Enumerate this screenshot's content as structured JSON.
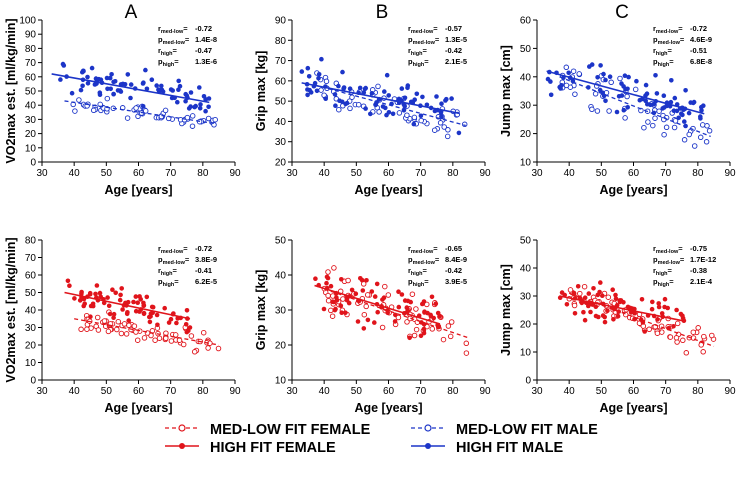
{
  "panel_letters": [
    "A",
    "B",
    "C"
  ],
  "colors": {
    "blue": "#1c35c8",
    "red": "#e0141b"
  },
  "legend": {
    "items": [
      {
        "label": "MED-LOW FIT FEMALE",
        "color": "#e0141b",
        "style": "open-dashed"
      },
      {
        "label": "HIGH FIT FEMALE",
        "color": "#e0141b",
        "style": "filled-solid"
      },
      {
        "label": "MED-LOW FIT MALE",
        "color": "#1c35c8",
        "style": "open-dashed"
      },
      {
        "label": "HIGH FIT MALE",
        "color": "#1c35c8",
        "style": "filled-solid"
      }
    ]
  },
  "chart_data": [
    {
      "id": "male-vo2",
      "type": "scatter",
      "color": "#1c35c8",
      "title": "",
      "xlabel": "Age [years]",
      "ylabel": "VO2max est. [ml/kg/min]",
      "xlim": [
        30,
        90
      ],
      "ylim": [
        0,
        100
      ],
      "xticks": [
        30,
        40,
        50,
        60,
        70,
        80,
        90
      ],
      "yticks": [
        0,
        10,
        20,
        30,
        40,
        50,
        60,
        70,
        80,
        90,
        100
      ],
      "stats": [
        {
          "name": "r",
          "sub": "med-low",
          "value": "-0.72"
        },
        {
          "name": "p",
          "sub": "med-low",
          "value": "1.4E-8"
        },
        {
          "name": "r",
          "sub": "high",
          "value": "-0.47"
        },
        {
          "name": "p",
          "sub": "high",
          "value": "1.3E-6"
        }
      ],
      "fits": [
        {
          "group": "high",
          "x": [
            33,
            82
          ],
          "y": [
            62,
            42
          ]
        },
        {
          "group": "med-low",
          "x": [
            37,
            84
          ],
          "y": [
            43,
            27
          ]
        }
      ],
      "seed": 11,
      "n_high": 80,
      "n_low": 60,
      "high_range": [
        33,
        82
      ],
      "low_range": [
        37,
        84
      ],
      "noise_high": 7,
      "noise_low": 4
    },
    {
      "id": "male-grip",
      "type": "scatter",
      "color": "#1c35c8",
      "title": "",
      "xlabel": "Age [years]",
      "ylabel": "Grip max [kg]",
      "xlim": [
        30,
        90
      ],
      "ylim": [
        20,
        90
      ],
      "xticks": [
        30,
        40,
        50,
        60,
        70,
        80,
        90
      ],
      "yticks": [
        20,
        30,
        40,
        50,
        60,
        70,
        80,
        90
      ],
      "stats": [
        {
          "name": "r",
          "sub": "med-low",
          "value": "-0.57"
        },
        {
          "name": "p",
          "sub": "med-low",
          "value": "1.3E-5"
        },
        {
          "name": "r",
          "sub": "high",
          "value": "-0.42"
        },
        {
          "name": "p",
          "sub": "high",
          "value": "2.1E-5"
        }
      ],
      "fits": [
        {
          "group": "high",
          "x": [
            33,
            82
          ],
          "y": [
            59,
            44
          ]
        },
        {
          "group": "med-low",
          "x": [
            37,
            84
          ],
          "y": [
            58,
            38
          ]
        }
      ],
      "seed": 23,
      "n_high": 80,
      "n_low": 60,
      "high_range": [
        33,
        82
      ],
      "low_range": [
        37,
        84
      ],
      "noise_high": 7,
      "noise_low": 7
    },
    {
      "id": "male-jump",
      "type": "scatter",
      "color": "#1c35c8",
      "title": "",
      "xlabel": "Age [years]",
      "ylabel": "Jump max [cm]",
      "xlim": [
        30,
        90
      ],
      "ylim": [
        10,
        60
      ],
      "xticks": [
        30,
        40,
        50,
        60,
        70,
        80,
        90
      ],
      "yticks": [
        10,
        20,
        30,
        40,
        50,
        60
      ],
      "stats": [
        {
          "name": "r",
          "sub": "med-low",
          "value": "-0.72"
        },
        {
          "name": "p",
          "sub": "med-low",
          "value": "4.6E-9"
        },
        {
          "name": "r",
          "sub": "high",
          "value": "-0.51"
        },
        {
          "name": "p",
          "sub": "high",
          "value": "6.8E-8"
        }
      ],
      "fits": [
        {
          "group": "high",
          "x": [
            33,
            82
          ],
          "y": [
            42,
            27
          ]
        },
        {
          "group": "med-low",
          "x": [
            37,
            84
          ],
          "y": [
            40,
            19
          ]
        }
      ],
      "seed": 37,
      "n_high": 80,
      "n_low": 60,
      "high_range": [
        33,
        82
      ],
      "low_range": [
        37,
        84
      ],
      "noise_high": 5,
      "noise_low": 5
    },
    {
      "id": "female-vo2",
      "type": "scatter",
      "color": "#e0141b",
      "title": "",
      "xlabel": "Age [years]",
      "ylabel": "VO2max est. [ml/kg/min]",
      "xlim": [
        30,
        90
      ],
      "ylim": [
        0,
        80
      ],
      "xticks": [
        30,
        40,
        50,
        60,
        70,
        80,
        90
      ],
      "yticks": [
        0,
        10,
        20,
        30,
        40,
        50,
        60,
        70,
        80
      ],
      "stats": [
        {
          "name": "r",
          "sub": "med-low",
          "value": "-0.72"
        },
        {
          "name": "p",
          "sub": "med-low",
          "value": "3.8E-9"
        },
        {
          "name": "r",
          "sub": "high",
          "value": "-0.41"
        },
        {
          "name": "p",
          "sub": "high",
          "value": "6.2E-5"
        }
      ],
      "fits": [
        {
          "group": "high",
          "x": [
            37,
            76
          ],
          "y": [
            50,
            35
          ]
        },
        {
          "group": "med-low",
          "x": [
            40,
            85
          ],
          "y": [
            35,
            20
          ]
        }
      ],
      "seed": 53,
      "n_high": 80,
      "n_low": 70,
      "high_range": [
        37,
        76
      ],
      "low_range": [
        40,
        85
      ],
      "noise_high": 6,
      "noise_low": 4
    },
    {
      "id": "female-grip",
      "type": "scatter",
      "color": "#e0141b",
      "title": "",
      "xlabel": "Age [years]",
      "ylabel": "Grip max [kg]",
      "xlim": [
        30,
        90
      ],
      "ylim": [
        10,
        50
      ],
      "xticks": [
        30,
        40,
        50,
        60,
        70,
        80,
        90
      ],
      "yticks": [
        10,
        20,
        30,
        40,
        50
      ],
      "stats": [
        {
          "name": "r",
          "sub": "med-low",
          "value": "-0.65"
        },
        {
          "name": "p",
          "sub": "med-low",
          "value": "8.4E-9"
        },
        {
          "name": "r",
          "sub": "high",
          "value": "-0.42"
        },
        {
          "name": "p",
          "sub": "high",
          "value": "3.9E-5"
        }
      ],
      "fits": [
        {
          "group": "high",
          "x": [
            37,
            76
          ],
          "y": [
            37,
            26
          ]
        },
        {
          "group": "med-low",
          "x": [
            40,
            85
          ],
          "y": [
            36,
            22
          ]
        }
      ],
      "seed": 71,
      "n_high": 80,
      "n_low": 70,
      "high_range": [
        37,
        76
      ],
      "low_range": [
        40,
        85
      ],
      "noise_high": 5,
      "noise_low": 5
    },
    {
      "id": "female-jump",
      "type": "scatter",
      "color": "#e0141b",
      "title": "",
      "xlabel": "Age [years]",
      "ylabel": "Jump max [cm]",
      "xlim": [
        30,
        90
      ],
      "ylim": [
        0,
        50
      ],
      "xticks": [
        30,
        40,
        50,
        60,
        70,
        80,
        90
      ],
      "yticks": [
        0,
        10,
        20,
        30,
        40,
        50
      ],
      "stats": [
        {
          "name": "r",
          "sub": "med-low",
          "value": "-0.75"
        },
        {
          "name": "p",
          "sub": "med-low",
          "value": "1.7E-12"
        },
        {
          "name": "r",
          "sub": "high",
          "value": "-0.38"
        },
        {
          "name": "p",
          "sub": "high",
          "value": "2.1E-4"
        }
      ],
      "fits": [
        {
          "group": "high",
          "x": [
            37,
            76
          ],
          "y": [
            30,
            21
          ]
        },
        {
          "group": "med-low",
          "x": [
            40,
            85
          ],
          "y": [
            31,
            12
          ]
        }
      ],
      "seed": 89,
      "n_high": 80,
      "n_low": 70,
      "high_range": [
        37,
        76
      ],
      "low_range": [
        40,
        85
      ],
      "noise_high": 4,
      "noise_low": 4
    }
  ]
}
